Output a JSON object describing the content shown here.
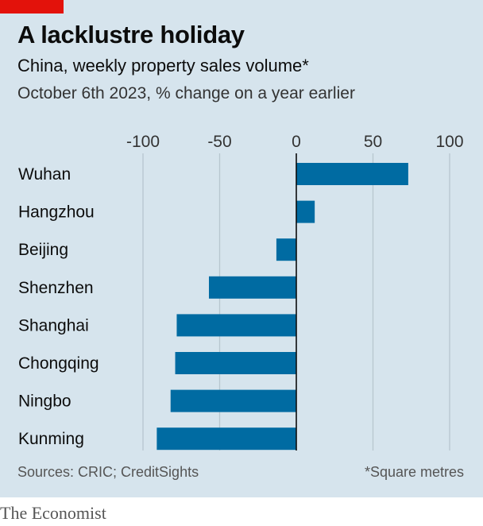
{
  "title": "A lacklustre holiday",
  "subtitle": "China, weekly property sales volume*",
  "subtitle2": "October 6th 2023, % change on a year earlier",
  "source": "Sources: CRIC; CreditSights",
  "footnote": "*Square metres",
  "brand": "The Economist",
  "colors": {
    "background": "#d6e4ed",
    "bar": "#006ba2",
    "accent": "#e3120b"
  },
  "chart_data": {
    "type": "bar",
    "orientation": "horizontal",
    "categories": [
      "Wuhan",
      "Hangzhou",
      "Beijing",
      "Shenzhen",
      "Shanghai",
      "Chongqing",
      "Ningbo",
      "Kunming"
    ],
    "values": [
      73,
      12,
      -13,
      -57,
      -78,
      -79,
      -82,
      -91
    ],
    "xlim": [
      -100,
      100
    ],
    "xticks": [
      -100,
      -50,
      0,
      50,
      100
    ],
    "tick_labels": [
      "-100",
      "-50",
      "0",
      "50",
      "100"
    ],
    "grid": true,
    "xlabel": "",
    "ylabel": ""
  }
}
